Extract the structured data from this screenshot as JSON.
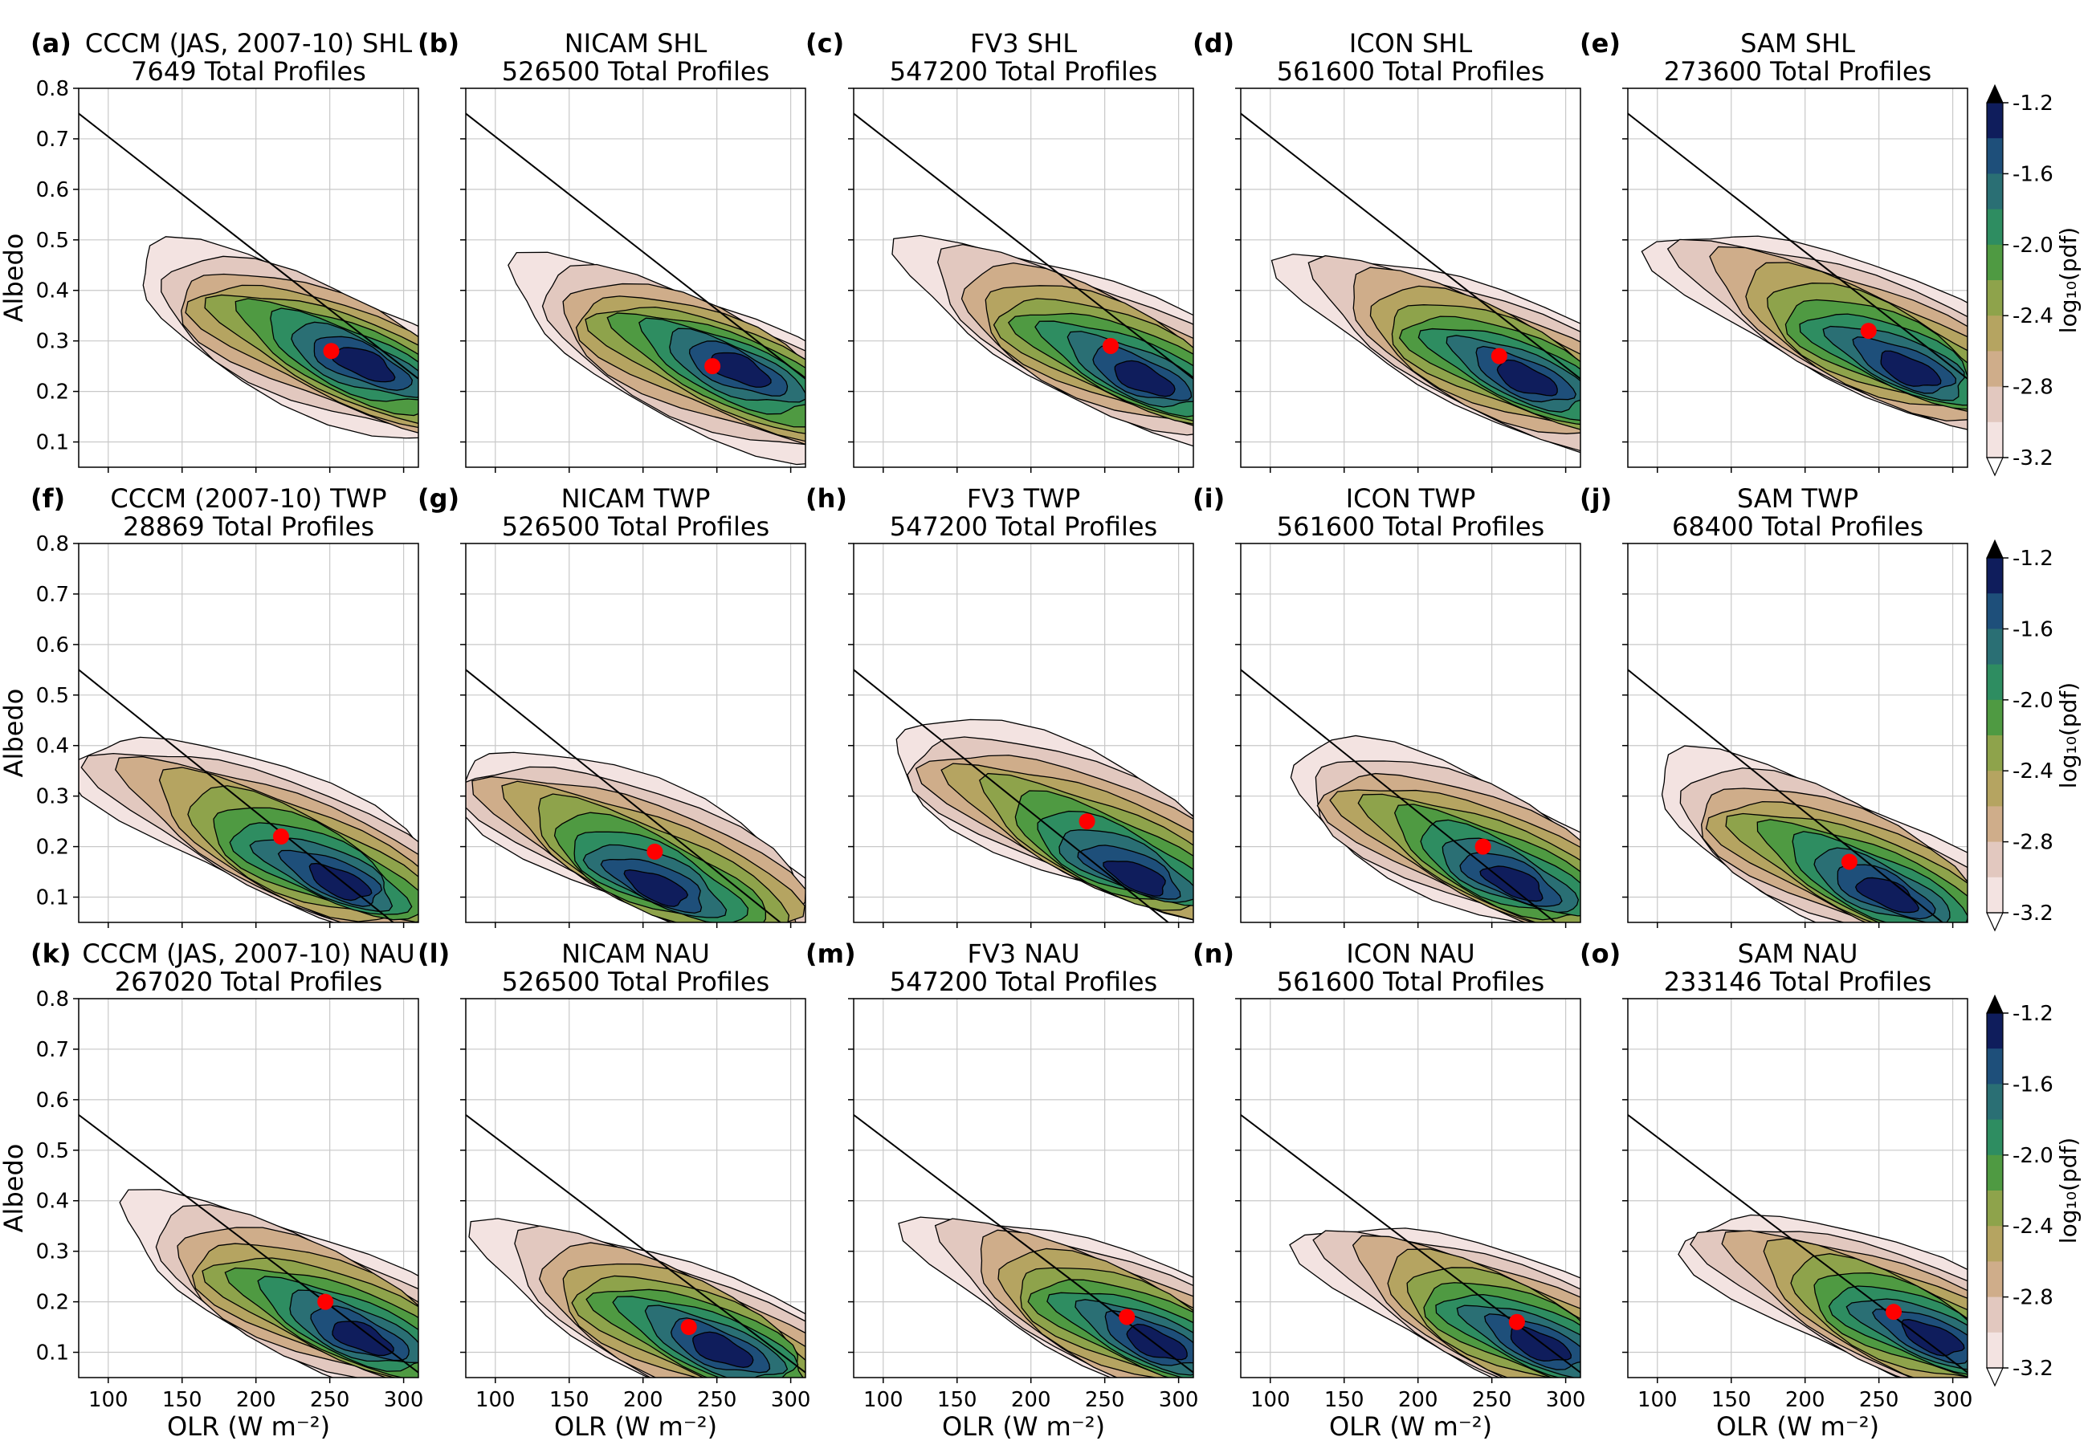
{
  "figure": {
    "x_axis_label": "OLR (W m⁻²)",
    "y_axis_label": "Albedo",
    "colorbar_label": "log₁₀(pdf)",
    "colorbar_ticks": [
      "-1.2",
      "-1.6",
      "-2.0",
      "-2.4",
      "-2.8",
      "-3.2"
    ],
    "colorbar_colors": [
      "#0f1d5c",
      "#1e4f7a",
      "#2a6f74",
      "#2e8d61",
      "#4f9a42",
      "#8ea34b",
      "#b5a461",
      "#cfad8a",
      "#e2c8bf",
      "#f3e3e1"
    ],
    "dot_color": "#ff0000"
  },
  "chart_data": [
    {
      "type": "heatmap",
      "label": "(a)",
      "title": "CCCM (JAS, 2007-10) SHL",
      "subtitle": "7649 Total Profiles",
      "xlim": [
        80,
        310
      ],
      "ylim": [
        0.05,
        0.8
      ],
      "xticks": [
        100,
        150,
        200,
        250,
        300
      ],
      "yticks": [
        0.1,
        0.2,
        0.3,
        0.4,
        0.5,
        0.6,
        0.7,
        0.8
      ],
      "centroid": {
        "x": 251,
        "y": 0.28
      },
      "reference_line": [
        [
          80,
          0.75
        ],
        [
          310,
          0.225
        ]
      ],
      "peak": {
        "x": 285,
        "y": 0.24
      }
    },
    {
      "type": "heatmap",
      "label": "(b)",
      "title": "NICAM SHL",
      "subtitle": "526500 Total Profiles",
      "xlim": [
        80,
        310
      ],
      "ylim": [
        0.05,
        0.8
      ],
      "xticks": [
        100,
        150,
        200,
        250,
        300
      ],
      "yticks": [
        0.1,
        0.2,
        0.3,
        0.4,
        0.5,
        0.6,
        0.7,
        0.8
      ],
      "centroid": {
        "x": 247,
        "y": 0.25
      },
      "reference_line": [
        [
          80,
          0.75
        ],
        [
          310,
          0.225
        ]
      ],
      "peak": {
        "x": 275,
        "y": 0.24
      }
    },
    {
      "type": "heatmap",
      "label": "(c)",
      "title": "FV3 SHL",
      "subtitle": "547200 Total Profiles",
      "xlim": [
        80,
        310
      ],
      "ylim": [
        0.05,
        0.8
      ],
      "xticks": [
        100,
        150,
        200,
        250,
        300
      ],
      "yticks": [
        0.1,
        0.2,
        0.3,
        0.4,
        0.5,
        0.6,
        0.7,
        0.8
      ],
      "centroid": {
        "x": 254,
        "y": 0.29
      },
      "reference_line": [
        [
          80,
          0.75
        ],
        [
          310,
          0.225
        ]
      ],
      "peak": {
        "x": 288,
        "y": 0.19
      }
    },
    {
      "type": "heatmap",
      "label": "(d)",
      "title": "ICON SHL",
      "subtitle": "561600 Total Profiles",
      "xlim": [
        80,
        310
      ],
      "ylim": [
        0.05,
        0.8
      ],
      "xticks": [
        100,
        150,
        200,
        250,
        300
      ],
      "yticks": [
        0.1,
        0.2,
        0.3,
        0.4,
        0.5,
        0.6,
        0.7,
        0.8
      ],
      "centroid": {
        "x": 255,
        "y": 0.27
      },
      "reference_line": [
        [
          80,
          0.75
        ],
        [
          310,
          0.225
        ]
      ],
      "peak": {
        "x": 283,
        "y": 0.2
      }
    },
    {
      "type": "heatmap",
      "label": "(e)",
      "title": "SAM SHL",
      "subtitle": "273600 Total Profiles",
      "xlim": [
        80,
        310
      ],
      "ylim": [
        0.05,
        0.8
      ],
      "xticks": [
        100,
        150,
        200,
        250,
        300
      ],
      "yticks": [
        0.1,
        0.2,
        0.3,
        0.4,
        0.5,
        0.6,
        0.7,
        0.8
      ],
      "centroid": {
        "x": 243,
        "y": 0.32
      },
      "reference_line": [
        [
          80,
          0.75
        ],
        [
          310,
          0.225
        ]
      ],
      "peak": {
        "x": 285,
        "y": 0.2
      }
    },
    {
      "type": "heatmap",
      "label": "(f)",
      "title": "CCCM (2007-10) TWP",
      "subtitle": "28869 Total Profiles",
      "xlim": [
        80,
        310
      ],
      "ylim": [
        0.05,
        0.8
      ],
      "xticks": [
        100,
        150,
        200,
        250,
        300
      ],
      "yticks": [
        0.1,
        0.2,
        0.3,
        0.4,
        0.5,
        0.6,
        0.7,
        0.8
      ],
      "centroid": {
        "x": 217,
        "y": 0.22
      },
      "reference_line": [
        [
          80,
          0.55
        ],
        [
          310,
          0.01
        ]
      ],
      "peak": {
        "x": 278,
        "y": 0.08
      }
    },
    {
      "type": "heatmap",
      "label": "(g)",
      "title": "NICAM TWP",
      "subtitle": "526500 Total Profiles",
      "xlim": [
        80,
        310
      ],
      "ylim": [
        0.05,
        0.8
      ],
      "xticks": [
        100,
        150,
        200,
        250,
        300
      ],
      "yticks": [
        0.1,
        0.2,
        0.3,
        0.4,
        0.5,
        0.6,
        0.7,
        0.8
      ],
      "centroid": {
        "x": 208,
        "y": 0.19
      },
      "reference_line": [
        [
          80,
          0.55
        ],
        [
          310,
          0.01
        ]
      ],
      "peak": {
        "x": 210,
        "y": 0.08
      }
    },
    {
      "type": "heatmap",
      "label": "(h)",
      "title": "FV3 TWP",
      "subtitle": "547200 Total Profiles",
      "xlim": [
        80,
        310
      ],
      "ylim": [
        0.05,
        0.8
      ],
      "xticks": [
        100,
        150,
        200,
        250,
        300
      ],
      "yticks": [
        0.1,
        0.2,
        0.3,
        0.4,
        0.5,
        0.6,
        0.7,
        0.8
      ],
      "centroid": {
        "x": 238,
        "y": 0.25
      },
      "reference_line": [
        [
          80,
          0.55
        ],
        [
          310,
          0.01
        ]
      ],
      "peak": {
        "x": 290,
        "y": 0.08
      }
    },
    {
      "type": "heatmap",
      "label": "(i)",
      "title": "ICON TWP",
      "subtitle": "561600 Total Profiles",
      "xlim": [
        80,
        310
      ],
      "ylim": [
        0.05,
        0.8
      ],
      "xticks": [
        100,
        150,
        200,
        250,
        300
      ],
      "yticks": [
        0.1,
        0.2,
        0.3,
        0.4,
        0.5,
        0.6,
        0.7,
        0.8
      ],
      "centroid": {
        "x": 244,
        "y": 0.2
      },
      "reference_line": [
        [
          80,
          0.55
        ],
        [
          310,
          0.01
        ]
      ],
      "peak": {
        "x": 276,
        "y": 0.09
      }
    },
    {
      "type": "heatmap",
      "label": "(j)",
      "title": "SAM TWP",
      "subtitle": "68400 Total Profiles",
      "xlim": [
        80,
        310
      ],
      "ylim": [
        0.05,
        0.8
      ],
      "xticks": [
        100,
        150,
        200,
        250,
        300
      ],
      "yticks": [
        0.1,
        0.2,
        0.3,
        0.4,
        0.5,
        0.6,
        0.7,
        0.8
      ],
      "centroid": {
        "x": 230,
        "y": 0.17
      },
      "reference_line": [
        [
          80,
          0.55
        ],
        [
          310,
          0.01
        ]
      ],
      "peak": {
        "x": 270,
        "y": 0.07
      }
    },
    {
      "type": "heatmap",
      "label": "(k)",
      "title": "CCCM (JAS, 2007-10) NAU",
      "subtitle": "267020 Total Profiles",
      "xlim": [
        80,
        310
      ],
      "ylim": [
        0.05,
        0.8
      ],
      "xticks": [
        100,
        150,
        200,
        250,
        300
      ],
      "yticks": [
        0.1,
        0.2,
        0.3,
        0.4,
        0.5,
        0.6,
        0.7,
        0.8
      ],
      "centroid": {
        "x": 247,
        "y": 0.2
      },
      "reference_line": [
        [
          80,
          0.57
        ],
        [
          310,
          0.06
        ]
      ],
      "peak": {
        "x": 285,
        "y": 0.09
      }
    },
    {
      "type": "heatmap",
      "label": "(l)",
      "title": "NICAM NAU",
      "subtitle": "526500 Total Profiles",
      "xlim": [
        80,
        310
      ],
      "ylim": [
        0.05,
        0.8
      ],
      "xticks": [
        100,
        150,
        200,
        250,
        300
      ],
      "yticks": [
        0.1,
        0.2,
        0.3,
        0.4,
        0.5,
        0.6,
        0.7,
        0.8
      ],
      "centroid": {
        "x": 231,
        "y": 0.15
      },
      "reference_line": [
        [
          80,
          0.57
        ],
        [
          310,
          0.06
        ]
      ],
      "peak": {
        "x": 265,
        "y": 0.08
      }
    },
    {
      "type": "heatmap",
      "label": "(m)",
      "title": "FV3 NAU",
      "subtitle": "547200 Total Profiles",
      "xlim": [
        80,
        310
      ],
      "ylim": [
        0.05,
        0.8
      ],
      "xticks": [
        100,
        150,
        200,
        250,
        300
      ],
      "yticks": [
        0.1,
        0.2,
        0.3,
        0.4,
        0.5,
        0.6,
        0.7,
        0.8
      ],
      "centroid": {
        "x": 265,
        "y": 0.17
      },
      "reference_line": [
        [
          80,
          0.57
        ],
        [
          310,
          0.06
        ]
      ],
      "peak": {
        "x": 295,
        "y": 0.09
      }
    },
    {
      "type": "heatmap",
      "label": "(n)",
      "title": "ICON NAU",
      "subtitle": "561600 Total Profiles",
      "xlim": [
        80,
        310
      ],
      "ylim": [
        0.05,
        0.8
      ],
      "xticks": [
        100,
        150,
        200,
        250,
        300
      ],
      "yticks": [
        0.1,
        0.2,
        0.3,
        0.4,
        0.5,
        0.6,
        0.7,
        0.8
      ],
      "centroid": {
        "x": 267,
        "y": 0.16
      },
      "reference_line": [
        [
          80,
          0.57
        ],
        [
          310,
          0.06
        ]
      ],
      "peak": {
        "x": 290,
        "y": 0.09
      }
    },
    {
      "type": "heatmap",
      "label": "(o)",
      "title": "SAM NAU",
      "subtitle": "233146 Total Profiles",
      "xlim": [
        80,
        310
      ],
      "ylim": [
        0.05,
        0.8
      ],
      "xticks": [
        100,
        150,
        200,
        250,
        300
      ],
      "yticks": [
        0.1,
        0.2,
        0.3,
        0.4,
        0.5,
        0.6,
        0.7,
        0.8
      ],
      "centroid": {
        "x": 260,
        "y": 0.18
      },
      "reference_line": [
        [
          80,
          0.57
        ],
        [
          310,
          0.06
        ]
      ],
      "peak": {
        "x": 300,
        "y": 0.1
      }
    }
  ]
}
